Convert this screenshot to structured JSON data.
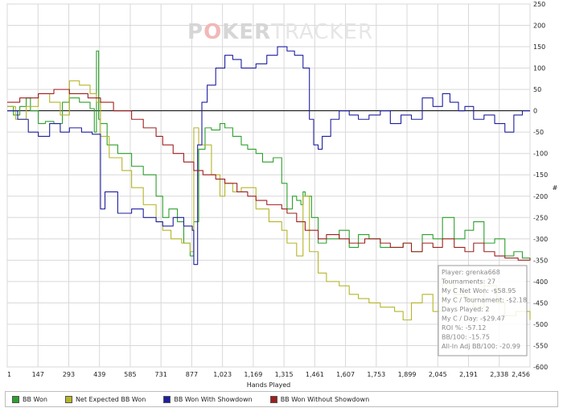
{
  "watermark": {
    "prefix": "P",
    "highlight": "O",
    "mid": "KER",
    "suffix": "TRACKER"
  },
  "colors": {
    "bb_won": "#2ca02c",
    "net_expected": "#b5b52a",
    "with_showdown": "#1f1fa0",
    "without_showdown": "#a01f1f",
    "zero_line": "#000000",
    "grid": "#d8d8d8"
  },
  "stats_box": [
    "Player: grenka668",
    "Tournaments: 27",
    "My C Net Won: -$58.95",
    "My C / Tournament: -$2.18",
    "Days Played: 2",
    "My C / Day: -$29.47",
    "ROI %: -57.12",
    "BB/100: -15.75",
    "All-In Adj BB/100: -20.99"
  ],
  "legend": [
    {
      "label": "BB Won",
      "color": "#2ca02c"
    },
    {
      "label": "Net Expected BB Won",
      "color": "#b5b52a"
    },
    {
      "label": "BB Won With Showdown",
      "color": "#1f1fa0"
    },
    {
      "label": "BB Won Without Showdown",
      "color": "#a01f1f"
    }
  ],
  "chart_data": {
    "type": "line",
    "xlabel": "Hands Played",
    "ylabel": "#",
    "xlim": [
      1,
      2456
    ],
    "ylim": [
      -600,
      250
    ],
    "x_ticks": [
      "1",
      "147",
      "293",
      "439",
      "585",
      "731",
      "877",
      "1,023",
      "1,169",
      "1,315",
      "1,461",
      "1,607",
      "1,753",
      "1,899",
      "2,045",
      "2,191",
      "2,338",
      "2,456"
    ],
    "y_ticks": [
      250,
      200,
      150,
      100,
      50,
      0,
      -50,
      -100,
      -150,
      -200,
      -250,
      -300,
      -350,
      -400,
      -450,
      -500,
      -550,
      -600
    ],
    "grid": true,
    "series": [
      {
        "name": "BB Won",
        "color": "#2ca02c",
        "x": [
          1,
          30,
          60,
          90,
          110,
          147,
          180,
          220,
          260,
          293,
          340,
          390,
          410,
          420,
          430,
          439,
          470,
          520,
          585,
          640,
          700,
          731,
          760,
          800,
          830,
          860,
          877,
          900,
          930,
          960,
          1000,
          1023,
          1060,
          1100,
          1130,
          1169,
          1200,
          1250,
          1290,
          1315,
          1340,
          1360,
          1380,
          1390,
          1400,
          1430,
          1461,
          1500,
          1560,
          1607,
          1650,
          1700,
          1753,
          1800,
          1860,
          1899,
          1950,
          2000,
          2045,
          2100,
          2150,
          2191,
          2240,
          2290,
          2338,
          2380,
          2420,
          2456
        ],
        "y": [
          10,
          -10,
          10,
          30,
          0,
          -30,
          -25,
          -30,
          20,
          30,
          20,
          5,
          -50,
          140,
          -20,
          -30,
          -80,
          -100,
          -130,
          -150,
          -200,
          -250,
          -230,
          -260,
          -310,
          -340,
          -260,
          -90,
          -40,
          -45,
          -30,
          -40,
          -60,
          -80,
          -90,
          -100,
          -120,
          -110,
          -170,
          -230,
          -200,
          -210,
          -220,
          -190,
          -200,
          -250,
          -310,
          -300,
          -280,
          -320,
          -290,
          -300,
          -320,
          -320,
          -310,
          -330,
          -290,
          -300,
          -250,
          -300,
          -280,
          -260,
          -310,
          -300,
          -340,
          -330,
          -345,
          -350
        ]
      },
      {
        "name": "Net Expected BB Won",
        "color": "#b5b52a",
        "x": [
          1,
          40,
          90,
          147,
          200,
          250,
          293,
          340,
          390,
          420,
          439,
          480,
          540,
          585,
          640,
          700,
          731,
          770,
          820,
          860,
          877,
          900,
          960,
          1000,
          1023,
          1060,
          1100,
          1169,
          1230,
          1290,
          1315,
          1360,
          1390,
          1420,
          1461,
          1500,
          1560,
          1607,
          1650,
          1700,
          1753,
          1820,
          1860,
          1899,
          1950,
          2000,
          2045,
          2100,
          2150,
          2191,
          2240,
          2300,
          2338,
          2390,
          2456
        ],
        "y": [
          10,
          -20,
          10,
          40,
          20,
          -10,
          70,
          60,
          40,
          20,
          -60,
          -110,
          -140,
          -180,
          -220,
          -260,
          -280,
          -300,
          -310,
          -330,
          -40,
          -80,
          -150,
          -200,
          -170,
          -190,
          -180,
          -230,
          -260,
          -280,
          -310,
          -340,
          -200,
          -330,
          -380,
          -400,
          -410,
          -430,
          -440,
          -450,
          -460,
          -470,
          -490,
          -450,
          -430,
          -470,
          -400,
          -430,
          -440,
          -460,
          -410,
          -450,
          -480,
          -470,
          -490
        ]
      },
      {
        "name": "BB Won With Showdown",
        "color": "#1f1fa0",
        "x": [
          1,
          50,
          100,
          147,
          200,
          250,
          293,
          350,
          400,
          439,
          460,
          520,
          585,
          640,
          700,
          731,
          780,
          830,
          870,
          877,
          895,
          915,
          940,
          980,
          1023,
          1060,
          1100,
          1169,
          1220,
          1270,
          1315,
          1350,
          1390,
          1420,
          1440,
          1461,
          1480,
          1520,
          1560,
          1607,
          1650,
          1700,
          1753,
          1800,
          1850,
          1899,
          1950,
          2000,
          2045,
          2080,
          2120,
          2150,
          2191,
          2240,
          2290,
          2338,
          2380,
          2420,
          2456
        ],
        "y": [
          0,
          -20,
          -50,
          -60,
          -30,
          -50,
          -40,
          -50,
          -55,
          -230,
          -190,
          -240,
          -230,
          -250,
          -260,
          -270,
          -250,
          -270,
          -280,
          -360,
          -80,
          20,
          60,
          100,
          130,
          120,
          100,
          110,
          130,
          150,
          140,
          130,
          100,
          -20,
          -80,
          -90,
          -60,
          -20,
          0,
          -10,
          -20,
          -10,
          0,
          -30,
          -10,
          -20,
          30,
          10,
          40,
          20,
          0,
          10,
          -20,
          -10,
          -30,
          -50,
          -10,
          0,
          0
        ]
      },
      {
        "name": "BB Won Without Showdown",
        "color": "#a01f1f",
        "x": [
          1,
          60,
          147,
          220,
          293,
          380,
          439,
          500,
          585,
          640,
          700,
          731,
          780,
          830,
          877,
          920,
          980,
          1023,
          1080,
          1130,
          1169,
          1220,
          1290,
          1315,
          1360,
          1400,
          1461,
          1500,
          1560,
          1607,
          1680,
          1753,
          1800,
          1860,
          1899,
          1950,
          2000,
          2045,
          2100,
          2150,
          2191,
          2240,
          2290,
          2338,
          2400,
          2456
        ],
        "y": [
          20,
          30,
          40,
          50,
          40,
          30,
          20,
          0,
          -20,
          -40,
          -60,
          -80,
          -100,
          -120,
          -140,
          -150,
          -160,
          -170,
          -190,
          -200,
          -210,
          -220,
          -230,
          -240,
          -260,
          -280,
          -300,
          -290,
          -300,
          -310,
          -300,
          -310,
          -320,
          -310,
          -330,
          -310,
          -320,
          -300,
          -320,
          -330,
          -310,
          -330,
          -340,
          -345,
          -350,
          -345
        ]
      }
    ]
  }
}
